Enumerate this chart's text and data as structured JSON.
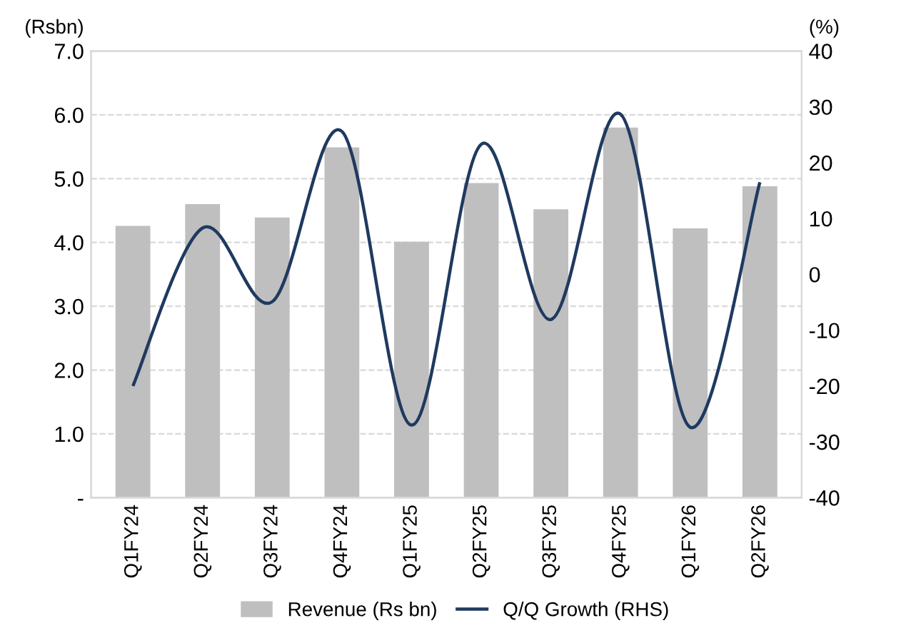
{
  "chart_data": {
    "type": "bar",
    "ylabel": "(Rsbn)",
    "y2label": "(%)",
    "categories": [
      "Q1FY24",
      "Q2FY24",
      "Q3FY24",
      "Q4FY24",
      "Q1FY25",
      "Q2FY25",
      "Q3FY25",
      "Q4FY25",
      "Q1FY26",
      "Q2FY26"
    ],
    "series": [
      {
        "name": "Revenue (Rs bn)",
        "color": "#bfbfbf",
        "values": [
          4.26,
          4.6,
          4.39,
          5.49,
          4.01,
          4.93,
          4.52,
          5.8,
          4.22,
          4.88
        ]
      },
      {
        "name": "Q/Q Growth (RHS)",
        "type": "line",
        "axis": "y2",
        "color": "#1f3a5f",
        "values": [
          -20,
          8.3,
          -4.9,
          25.6,
          -27,
          23.3,
          -8.1,
          28.7,
          -27.4,
          16.5
        ]
      }
    ],
    "ylim": [
      0,
      7
    ],
    "yticks": [
      {
        "value": 0,
        "label": "-"
      },
      {
        "value": 1,
        "label": "1.0"
      },
      {
        "value": 2,
        "label": "2.0"
      },
      {
        "value": 3,
        "label": "3.0"
      },
      {
        "value": 4,
        "label": "4.0"
      },
      {
        "value": 5,
        "label": "5.0"
      },
      {
        "value": 6,
        "label": "6.0"
      },
      {
        "value": 7,
        "label": "7.0"
      }
    ],
    "y2lim": [
      -40,
      40
    ],
    "y2ticks": [
      -40,
      -30,
      -20,
      -10,
      0,
      10,
      20,
      30,
      40
    ],
    "grid": "y",
    "legend": "bottom",
    "marker": "none",
    "line_style": "solid"
  }
}
